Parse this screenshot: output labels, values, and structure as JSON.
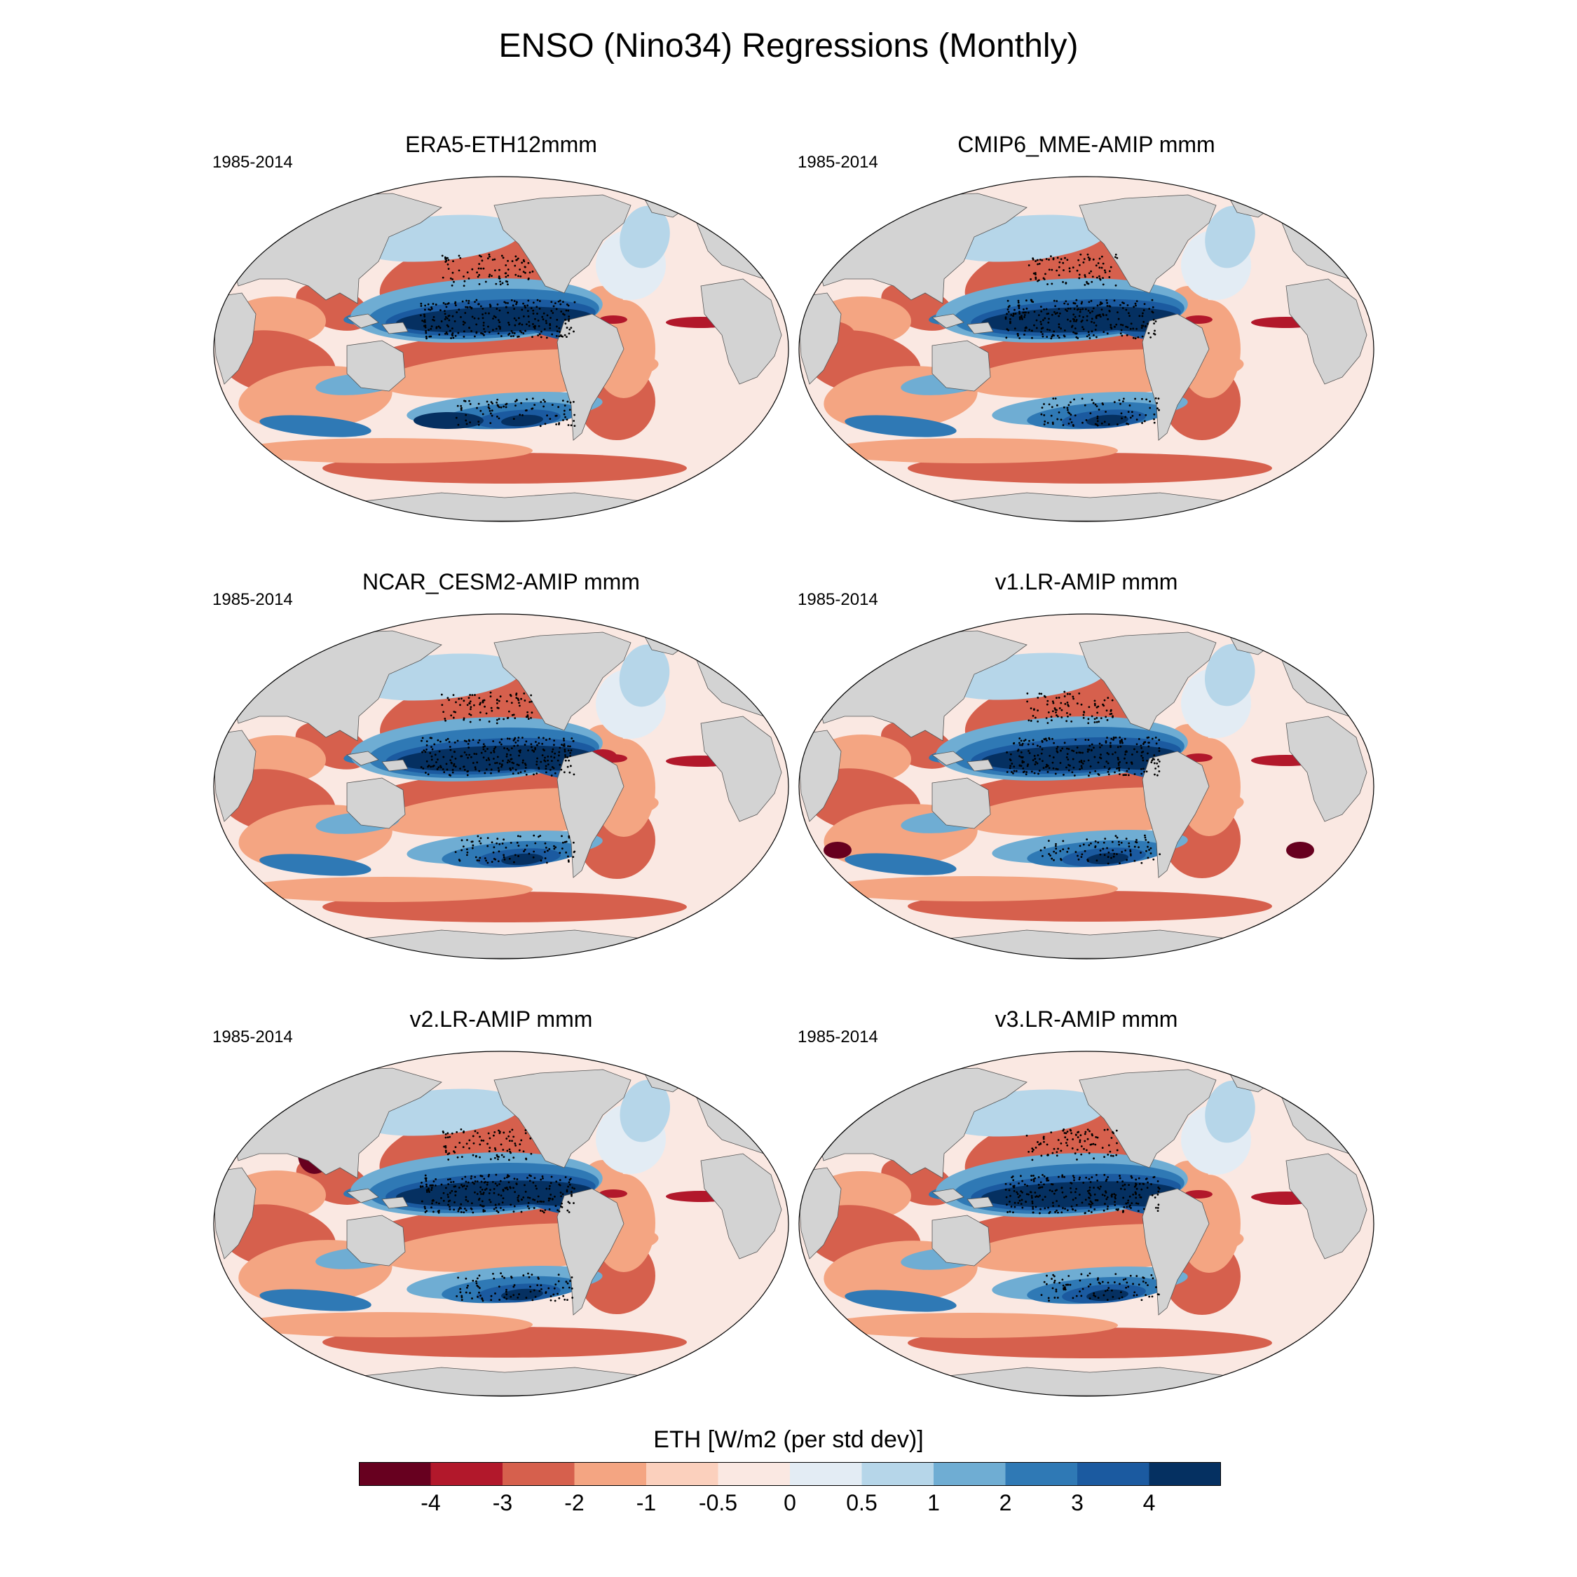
{
  "title": "ENSO (Nino34) Regressions (Monthly)",
  "panels": [
    {
      "title": "ERA5-ETH12mmm",
      "period": "1985-2014",
      "variant": 0
    },
    {
      "title": "CMIP6_MME-AMIP  mmm",
      "period": "1985-2014",
      "variant": 1
    },
    {
      "title": "NCAR_CESM2-AMIP  mmm",
      "period": "1985-2014",
      "variant": 2
    },
    {
      "title": "v1.LR-AMIP  mmm",
      "period": "1985-2014",
      "variant": 3
    },
    {
      "title": "v2.LR-AMIP  mmm",
      "period": "1985-2014",
      "variant": 4
    },
    {
      "title": "v3.LR-AMIP  mmm",
      "period": "1985-2014",
      "variant": 5
    }
  ],
  "colorbar": {
    "title": "ETH [W/m2 (per std dev)]",
    "tick_labels": [
      "-4",
      "-3",
      "-2",
      "-1",
      "-0.5",
      "0",
      "0.5",
      "1",
      "2",
      "3",
      "4"
    ],
    "colors": [
      "#67001f",
      "#b2182b",
      "#d6604d",
      "#f4a582",
      "#fbd0bd",
      "#fae8e2",
      "#e3ecf4",
      "#b6d6e9",
      "#6fadd3",
      "#2f79b5",
      "#1b5aa0",
      "#053061"
    ]
  },
  "land_color": "#d3d3d3"
}
